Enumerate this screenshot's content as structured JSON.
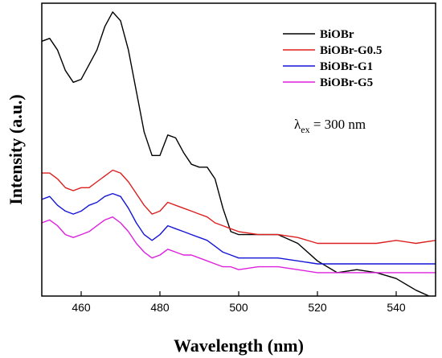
{
  "chart_data": {
    "type": "line",
    "xlabel": "Wavelength (nm)",
    "ylabel": "Intensity (a.u.)",
    "xlim": [
      450,
      550
    ],
    "ylim": [
      0,
      100
    ],
    "xticks": [
      460,
      480,
      500,
      520,
      540
    ],
    "y_tick_labels": "none",
    "grid": false,
    "legend_position": "top-right",
    "annotation": {
      "lambda": "λ",
      "sub": "ex",
      "value": " = 300 nm"
    },
    "series": [
      {
        "name": "BiOBr",
        "color": "#000000",
        "x": [
          450,
          452,
          454,
          456,
          458,
          460,
          462,
          464,
          466,
          468,
          470,
          472,
          474,
          476,
          478,
          480,
          482,
          484,
          486,
          488,
          490,
          492,
          494,
          496,
          498,
          500,
          505,
          510,
          515,
          520,
          525,
          530,
          535,
          540,
          545,
          550
        ],
        "y": [
          87,
          88,
          84,
          77,
          73,
          74,
          79,
          84,
          92,
          97,
          94,
          84,
          70,
          56,
          48,
          48,
          55,
          54,
          49,
          45,
          44,
          44,
          40,
          30,
          22,
          21,
          21,
          21,
          18,
          12,
          8,
          9,
          8,
          6,
          2,
          -1
        ]
      },
      {
        "name": "BiOBr-G0.5",
        "color": "#dd1f1f",
        "x": [
          450,
          452,
          454,
          456,
          458,
          460,
          462,
          464,
          466,
          468,
          470,
          472,
          474,
          476,
          478,
          480,
          482,
          484,
          486,
          488,
          490,
          492,
          494,
          496,
          498,
          500,
          505,
          510,
          515,
          520,
          525,
          530,
          535,
          540,
          545,
          550
        ],
        "y": [
          42,
          42,
          40,
          37,
          36,
          37,
          37,
          39,
          41,
          43,
          42,
          39,
          35,
          31,
          28,
          29,
          32,
          31,
          30,
          29,
          28,
          27,
          25,
          24,
          23,
          22,
          21,
          21,
          20,
          18,
          18,
          18,
          18,
          19,
          18,
          19
        ]
      },
      {
        "name": "BiOBr-G1",
        "color": "#1515d6",
        "x": [
          450,
          452,
          454,
          456,
          458,
          460,
          462,
          464,
          466,
          468,
          470,
          472,
          474,
          476,
          478,
          480,
          482,
          484,
          486,
          488,
          490,
          492,
          494,
          496,
          498,
          500,
          505,
          510,
          515,
          520,
          525,
          530,
          535,
          540,
          545,
          550
        ],
        "y": [
          33,
          34,
          31,
          29,
          28,
          29,
          31,
          32,
          34,
          35,
          34,
          30,
          25,
          21,
          19,
          21,
          24,
          23,
          22,
          21,
          20,
          19,
          17,
          15,
          14,
          13,
          13,
          13,
          12,
          11,
          11,
          11,
          11,
          11,
          11,
          11
        ]
      },
      {
        "name": "BiOBr-G5",
        "color": "#dd22dd",
        "x": [
          450,
          452,
          454,
          456,
          458,
          460,
          462,
          464,
          466,
          468,
          470,
          472,
          474,
          476,
          478,
          480,
          482,
          484,
          486,
          488,
          490,
          492,
          494,
          496,
          498,
          500,
          505,
          510,
          515,
          520,
          525,
          530,
          535,
          540,
          545,
          550
        ],
        "y": [
          25,
          26,
          24,
          21,
          20,
          21,
          22,
          24,
          26,
          27,
          25,
          22,
          18,
          15,
          13,
          14,
          16,
          15,
          14,
          14,
          13,
          12,
          11,
          10,
          10,
          9,
          10,
          10,
          9,
          8,
          8,
          8,
          8,
          8,
          8,
          8
        ]
      }
    ]
  }
}
